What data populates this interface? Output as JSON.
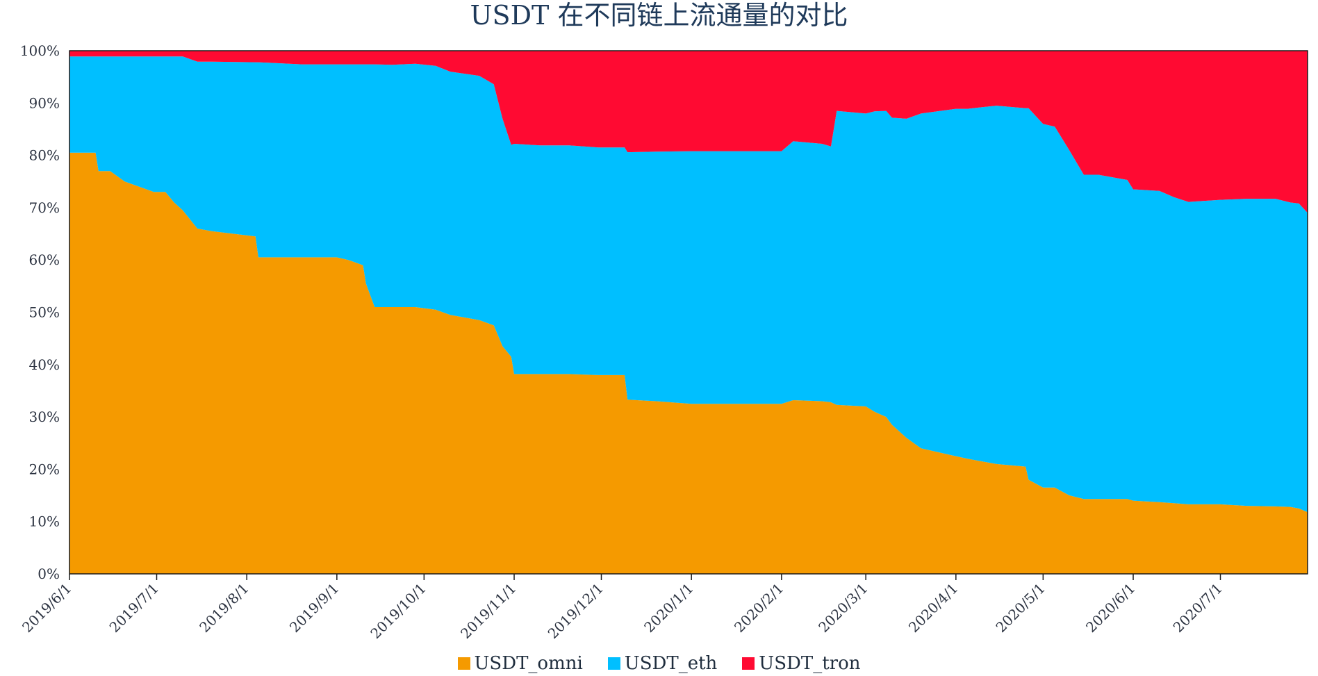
{
  "chart_data": {
    "type": "area",
    "stacked": "percent",
    "title": "USDT 在不同链上流通量的对比",
    "xlabel": "",
    "ylabel": "",
    "ylim": [
      0,
      100
    ],
    "y_ticks": [
      "0%",
      "10%",
      "20%",
      "30%",
      "40%",
      "50%",
      "60%",
      "70%",
      "80%",
      "90%",
      "100%"
    ],
    "x_ticks": [
      "2019/6/1",
      "2019/7/1",
      "2019/8/1",
      "2019/9/1",
      "2019/10/1",
      "2019/11/1",
      "2019/12/1",
      "2020/1/1",
      "2020/2/1",
      "2020/3/1",
      "2020/4/1",
      "2020/5/1",
      "2020/6/1",
      "2020/7/1"
    ],
    "x_range": [
      "2019/6/1",
      "2020/7/31"
    ],
    "legend_position": "bottom",
    "grid": false,
    "x": [
      "2019/6/1",
      "2019/6/10",
      "2019/6/11",
      "2019/6/15",
      "2019/6/20",
      "2019/6/30",
      "2019/7/4",
      "2019/7/7",
      "2019/7/10",
      "2019/7/15",
      "2019/7/20",
      "2019/8/4",
      "2019/8/5",
      "2019/8/20",
      "2019/9/1",
      "2019/9/5",
      "2019/9/10",
      "2019/9/11",
      "2019/9/14",
      "2019/9/20",
      "2019/9/28",
      "2019/10/5",
      "2019/10/10",
      "2019/10/15",
      "2019/10/20",
      "2019/10/25",
      "2019/10/28",
      "2019/10/31",
      "2019/11/1",
      "2019/11/10",
      "2019/11/20",
      "2019/11/30",
      "2019/12/9",
      "2019/12/10",
      "2019/12/20",
      "2020/1/1",
      "2020/1/15",
      "2020/2/1",
      "2020/2/5",
      "2020/2/15",
      "2020/2/18",
      "2020/2/20",
      "2020/3/1",
      "2020/3/4",
      "2020/3/8",
      "2020/3/10",
      "2020/3/15",
      "2020/3/20",
      "2020/4/1",
      "2020/4/5",
      "2020/4/10",
      "2020/4/15",
      "2020/4/25",
      "2020/4/26",
      "2020/5/1",
      "2020/5/5",
      "2020/5/10",
      "2020/5/15",
      "2020/5/20",
      "2020/5/30",
      "2020/6/1",
      "2020/6/10",
      "2020/6/15",
      "2020/6/20",
      "2020/7/1",
      "2020/7/10",
      "2020/7/20",
      "2020/7/25",
      "2020/7/28",
      "2020/7/31"
    ],
    "series": [
      {
        "name": "USDT_omni",
        "color": "#f59a00",
        "values": [
          80.5,
          80.5,
          77,
          77,
          75,
          73,
          73,
          71,
          69.5,
          66,
          65.5,
          64.5,
          60.5,
          60.5,
          60.5,
          60,
          59,
          55.5,
          51,
          51,
          51,
          50.5,
          49.5,
          49,
          48.5,
          47.5,
          43.5,
          41.5,
          38.2,
          38.2,
          38.2,
          38,
          38,
          33.3,
          33,
          32.5,
          32.5,
          32.5,
          33.2,
          33,
          32.8,
          32.3,
          32,
          31,
          30,
          28.5,
          26,
          24,
          22.5,
          22,
          21.5,
          21,
          20.5,
          18,
          16.5,
          16.5,
          15,
          14.3,
          14.3,
          14.3,
          14,
          13.7,
          13.5,
          13.3,
          13.3,
          13,
          12.9,
          12.8,
          12.5,
          11.8
        ]
      },
      {
        "name": "USDT_eth",
        "color": "#00bfff",
        "values": [
          18.4,
          18.4,
          21.9,
          21.9,
          23.9,
          25.9,
          25.9,
          27.9,
          29.4,
          31.9,
          32.4,
          33.3,
          37.3,
          36.9,
          36.9,
          37.4,
          38.4,
          41.9,
          46.4,
          46.3,
          46.5,
          46.6,
          46.5,
          46.6,
          46.7,
          46.1,
          43.5,
          40.5,
          44,
          43.7,
          43.7,
          43.5,
          43.5,
          47.3,
          47.7,
          48.3,
          48.3,
          48.3,
          49.5,
          49.2,
          48.9,
          56.2,
          56,
          57.4,
          58.5,
          58.7,
          61,
          64,
          66.4,
          66.9,
          67.7,
          68.5,
          68.5,
          71,
          69.5,
          69,
          66,
          62,
          62,
          61,
          59.5,
          59.5,
          58.5,
          57.8,
          58.2,
          58.7,
          58.8,
          58.2,
          58.3,
          57.2
        ]
      },
      {
        "name": "USDT_tron",
        "color": "#ff0a32",
        "values": [
          1.1,
          1.1,
          1.1,
          1.1,
          1.1,
          1.1,
          1.1,
          1.1,
          1.1,
          2.1,
          2.1,
          2.2,
          2.2,
          2.6,
          2.6,
          2.6,
          2.6,
          2.6,
          2.6,
          2.7,
          2.5,
          2.9,
          4,
          4.4,
          4.8,
          6.4,
          13,
          18,
          17.8,
          18.1,
          18.1,
          18.5,
          18.5,
          19.4,
          19.3,
          19.2,
          19.2,
          19.2,
          17.3,
          17.8,
          18.3,
          11.5,
          12,
          11.6,
          11.5,
          12.8,
          13,
          12,
          11.1,
          11.1,
          10.8,
          10.5,
          11,
          11,
          14,
          14.5,
          19,
          23.7,
          23.7,
          24.7,
          26.5,
          26.8,
          28,
          28.9,
          28.5,
          28.3,
          28.3,
          29,
          29.2,
          31
        ]
      }
    ]
  }
}
